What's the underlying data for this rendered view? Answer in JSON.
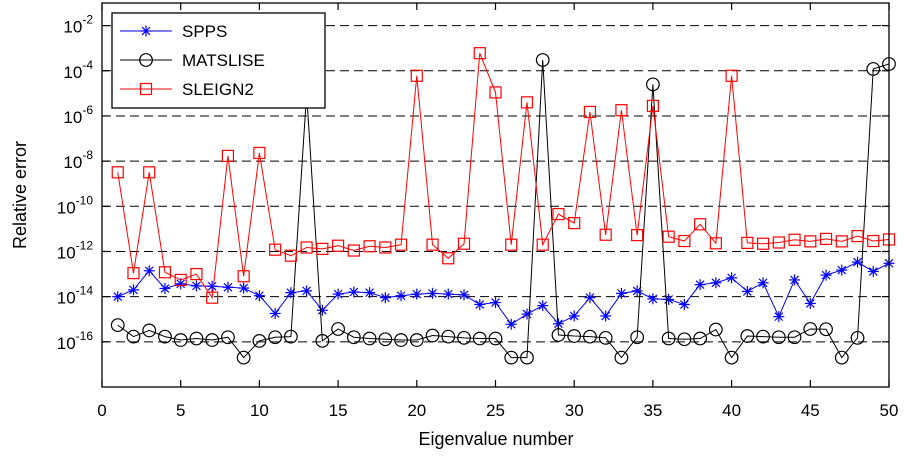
{
  "chart_data": {
    "type": "line",
    "xlabel": "Eigenvalue number",
    "ylabel": "Relative error",
    "xlim": [
      0,
      50
    ],
    "ylim": [
      1e-18,
      0.1
    ],
    "yscale": "log",
    "grid": "horizontal-dashed",
    "legend_position": "top-left",
    "xticks": [
      0,
      5,
      10,
      15,
      20,
      25,
      30,
      35,
      40,
      45,
      50
    ],
    "xtick_labels": [
      "0",
      "5",
      "10",
      "15",
      "20",
      "25",
      "30",
      "35",
      "40",
      "45",
      "50"
    ],
    "yticks": [
      1e-16,
      1e-14,
      1e-12,
      1e-10,
      1e-08,
      1e-06,
      0.0001,
      0.01
    ],
    "ytick_labels": [
      {
        "base": "10",
        "exp": "-16"
      },
      {
        "base": "10",
        "exp": "-14"
      },
      {
        "base": "10",
        "exp": "-12"
      },
      {
        "base": "10",
        "exp": "-10"
      },
      {
        "base": "10",
        "exp": "-8"
      },
      {
        "base": "10",
        "exp": "-6"
      },
      {
        "base": "10",
        "exp": "-4"
      },
      {
        "base": "10",
        "exp": "-2"
      }
    ],
    "x": [
      1,
      2,
      3,
      4,
      5,
      6,
      7,
      8,
      9,
      10,
      11,
      12,
      13,
      14,
      15,
      16,
      17,
      18,
      19,
      20,
      21,
      22,
      23,
      24,
      25,
      26,
      27,
      28,
      29,
      30,
      31,
      32,
      33,
      34,
      35,
      36,
      37,
      38,
      39,
      40,
      41,
      42,
      43,
      44,
      45,
      46,
      47,
      48,
      49,
      50
    ],
    "series": [
      {
        "name": "SPPS",
        "color": "#0000ff",
        "marker": "asterisk",
        "values": [
          1e-14,
          2e-14,
          1.4e-13,
          2.3e-14,
          3.7e-14,
          3e-14,
          2.9e-14,
          2.6e-14,
          2.4e-14,
          1.1e-14,
          1.8e-15,
          1.5e-14,
          1.8e-14,
          2.5e-15,
          1.3e-14,
          1.6e-14,
          1.5e-14,
          9e-15,
          1.1e-14,
          1.3e-14,
          1.4e-14,
          1.3e-14,
          1.2e-14,
          4.5e-15,
          5.5e-15,
          6e-16,
          1.7e-15,
          4e-15,
          6.3e-16,
          1.4e-15,
          9e-15,
          1.4e-15,
          1.4e-14,
          1.8e-14,
          8e-15,
          7.5e-15,
          4.5e-15,
          3.4e-14,
          4.1e-14,
          6.8e-14,
          1.7e-14,
          4.1e-14,
          1.3e-15,
          5.5e-14,
          5e-15,
          9e-14,
          1.5e-13,
          3.4e-13,
          1.3e-13,
          3e-13
        ]
      },
      {
        "name": "MATSLISE",
        "color": "#000000",
        "marker": "circle",
        "values": [
          5.5e-16,
          1.7e-16,
          3.2e-16,
          1.7e-16,
          1.2e-16,
          1.4e-16,
          1.2e-16,
          1.6e-16,
          2e-17,
          1.1e-16,
          1.6e-16,
          1.7e-16,
          1e-05,
          1.1e-16,
          3.7e-16,
          1.6e-16,
          1.4e-16,
          1.3e-16,
          1.2e-16,
          1.2e-16,
          1.9e-16,
          1.7e-16,
          1.5e-16,
          1.4e-16,
          1.4e-16,
          2e-17,
          2e-17,
          0.0003,
          2e-16,
          1.8e-16,
          1.7e-16,
          1.5e-16,
          2e-17,
          1.6e-16,
          2.5e-05,
          1.4e-16,
          1.3e-16,
          1.4e-16,
          3.5e-16,
          2e-17,
          1.8e-16,
          1.7e-16,
          1.6e-16,
          1.6e-16,
          3.7e-16,
          3.6e-16,
          2e-17,
          1.5e-16,
          0.00012,
          0.0002
        ]
      },
      {
        "name": "SLEIGN2",
        "color": "#ff0000",
        "marker": "square",
        "values": [
          3.2e-09,
          1.1e-13,
          3.2e-09,
          1.2e-13,
          5.5e-14,
          1e-13,
          9e-15,
          1.7e-08,
          8e-14,
          2.3e-08,
          1.2e-12,
          6.5e-13,
          1.5e-12,
          1.3e-12,
          1.8e-12,
          1.1e-12,
          1.7e-12,
          1.5e-12,
          2e-12,
          6e-05,
          2e-12,
          5e-13,
          2.2e-12,
          0.0006,
          1.1e-05,
          2e-12,
          4e-06,
          2e-12,
          4.5e-11,
          1.8e-11,
          1.5e-06,
          5.5e-12,
          1.8e-06,
          5.3e-12,
          2.8e-06,
          4.5e-12,
          2.9e-12,
          1.6e-11,
          2.3e-12,
          6e-05,
          2.4e-12,
          2.2e-12,
          2.5e-12,
          3.3e-12,
          2.8e-12,
          3.6e-12,
          2.8e-12,
          4.8e-12,
          2.9e-12,
          3.4e-12
        ]
      }
    ]
  }
}
